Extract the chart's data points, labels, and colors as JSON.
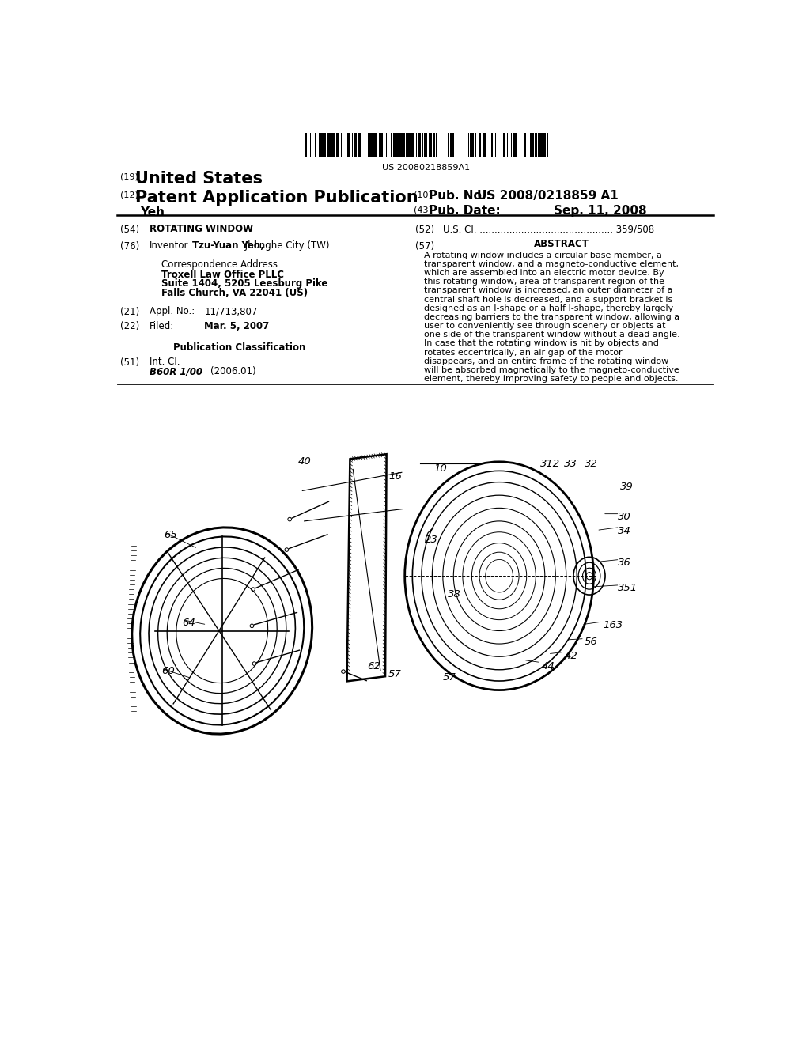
{
  "bg_color": "#ffffff",
  "barcode_text": "US 20080218859A1",
  "header_19": "(19)",
  "header_19_text": "United States",
  "header_12": "(12)",
  "header_12_text": "Patent Application Publication",
  "header_10": "(10)",
  "header_10_label": "Pub. No.:",
  "header_10_val": "US 2008/0218859 A1",
  "header_43": "(43)",
  "header_43_label": "Pub. Date:",
  "header_43_date": "Sep. 11, 2008",
  "inventor_name": "Yeh",
  "field_54_label": "(54)",
  "field_54_text": "ROTATING WINDOW",
  "field_52_label": "(52)",
  "field_52_text": "U.S. Cl. ............................................. 359/508",
  "field_57_label": "(57)",
  "field_57_title": "ABSTRACT",
  "field_57_text": "A rotating window includes a circular base member, a transparent window, and a magneto-conductive element, which are assembled into an electric motor device. By this rotating window, area of transparent region of the transparent window is increased, an outer diameter of a central shaft hole is decreased, and a support bracket is designed as an I-shape or a half I-shape, thereby largely decreasing barriers to the transparent window, allowing a user to conveniently see through scenery or objects at one side of the transparent window without a dead angle. In case that the rotating window is hit by objects and rotates eccentrically, an air gap of the motor disappears, and an entire frame of the rotating window will be absorbed magnetically to the magneto-conductive element, thereby improving safety to people and objects.",
  "field_76_label": "(76)",
  "field_76_text1": "Inventor:",
  "field_76_name": "Tzu-Yuan Yeh,",
  "field_76_city": " Jhonghe City (TW)",
  "corr_label": "Correspondence Address:",
  "corr_line1": "Troxell Law Office PLLC",
  "corr_line2": "Suite 1404, 5205 Leesburg Pike",
  "corr_line3": "Falls Church, VA 22041 (US)",
  "field_21_label": "(21)",
  "field_21_text1": "Appl. No.:",
  "field_21_text2": "11/713,807",
  "field_22_label": "(22)",
  "field_22_text1": "Filed:",
  "field_22_text2": "Mar. 5, 2007",
  "pub_class_title": "Publication Classification",
  "field_51_label": "(51)",
  "field_51_text1": "Int. Cl.",
  "field_51_text2": "B60R 1/00",
  "field_51_text3": "(2006.01)"
}
